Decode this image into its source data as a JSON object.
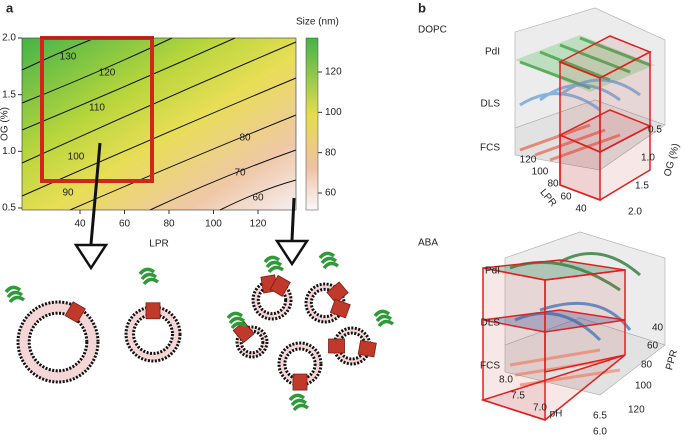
{
  "panel_a": {
    "label": "a",
    "x_label": "LPR",
    "y_label": "OG (%)",
    "xticks": [
      40,
      60,
      80,
      100,
      120
    ],
    "yticks": [
      "0.5",
      "1.0",
      "1.5",
      "2.0"
    ],
    "colorbar_title": "Size (nm)",
    "colorbar_ticks": [
      60,
      80,
      100,
      120
    ],
    "contour_labels": [
      130,
      120,
      110,
      100,
      90,
      80,
      70,
      60
    ]
  },
  "panel_b": {
    "label": "b",
    "top": {
      "title": "DOPC",
      "rows": [
        "PdI",
        "DLS",
        "FCS"
      ],
      "axis1_label": "LPR",
      "axis1_ticks": [
        120,
        100,
        80,
        60,
        40
      ],
      "axis2_label": "OG (%)",
      "axis2_ticks": [
        "0.5",
        "1.0",
        "1.5",
        "2.0"
      ]
    },
    "bottom": {
      "title": "ABA",
      "rows": [
        "PdI",
        "DLS",
        "FCS"
      ],
      "axis1_label": "pH",
      "axis1_ticks": [
        "8.0",
        "7.5",
        "7.0",
        "6.5",
        "6.0"
      ],
      "axis2_label": "PPR",
      "axis2_ticks": [
        40,
        60,
        80,
        100,
        120
      ]
    }
  }
}
